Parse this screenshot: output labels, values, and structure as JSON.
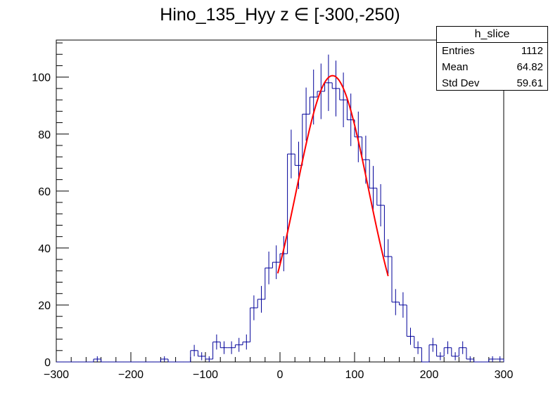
{
  "title": "Hino_135_Hyy z  ∈ [-300,-250)",
  "stats": {
    "name": "h_slice",
    "rows": [
      {
        "label": "Entries",
        "value": "1112"
      },
      {
        "label": "Mean",
        "value": "64.82"
      },
      {
        "label": "Std Dev",
        "value": "59.61"
      }
    ]
  },
  "chart_data": {
    "type": "histogram",
    "xlim": [
      -300,
      300
    ],
    "ylim": [
      0,
      113
    ],
    "xticks": [
      -300,
      -200,
      -100,
      0,
      100,
      200,
      300
    ],
    "yticks": [
      0,
      20,
      40,
      60,
      80,
      100
    ],
    "bin_width": 10,
    "bins": [
      {
        "x": -300,
        "y": 0
      },
      {
        "x": -290,
        "y": 0
      },
      {
        "x": -280,
        "y": 0
      },
      {
        "x": -270,
        "y": 0
      },
      {
        "x": -260,
        "y": 0
      },
      {
        "x": -250,
        "y": 1
      },
      {
        "x": -240,
        "y": 0
      },
      {
        "x": -230,
        "y": 0
      },
      {
        "x": -220,
        "y": 0
      },
      {
        "x": -210,
        "y": 0
      },
      {
        "x": -200,
        "y": 0
      },
      {
        "x": -190,
        "y": 0
      },
      {
        "x": -180,
        "y": 0
      },
      {
        "x": -170,
        "y": 0
      },
      {
        "x": -160,
        "y": 1
      },
      {
        "x": -150,
        "y": 0
      },
      {
        "x": -140,
        "y": 0
      },
      {
        "x": -130,
        "y": 0
      },
      {
        "x": -120,
        "y": 4
      },
      {
        "x": -110,
        "y": 2
      },
      {
        "x": -100,
        "y": 1
      },
      {
        "x": -90,
        "y": 7
      },
      {
        "x": -80,
        "y": 5
      },
      {
        "x": -70,
        "y": 5
      },
      {
        "x": -60,
        "y": 6
      },
      {
        "x": -50,
        "y": 7
      },
      {
        "x": -40,
        "y": 19
      },
      {
        "x": -30,
        "y": 22
      },
      {
        "x": -20,
        "y": 33
      },
      {
        "x": -10,
        "y": 35
      },
      {
        "x": 0,
        "y": 38
      },
      {
        "x": 10,
        "y": 73
      },
      {
        "x": 20,
        "y": 69
      },
      {
        "x": 30,
        "y": 87
      },
      {
        "x": 40,
        "y": 93
      },
      {
        "x": 50,
        "y": 95
      },
      {
        "x": 60,
        "y": 98
      },
      {
        "x": 70,
        "y": 96
      },
      {
        "x": 80,
        "y": 92
      },
      {
        "x": 90,
        "y": 85
      },
      {
        "x": 100,
        "y": 79
      },
      {
        "x": 110,
        "y": 71
      },
      {
        "x": 120,
        "y": 61
      },
      {
        "x": 130,
        "y": 55
      },
      {
        "x": 140,
        "y": 37
      },
      {
        "x": 150,
        "y": 21
      },
      {
        "x": 160,
        "y": 20
      },
      {
        "x": 170,
        "y": 9
      },
      {
        "x": 180,
        "y": 5
      },
      {
        "x": 190,
        "y": 0
      },
      {
        "x": 200,
        "y": 6
      },
      {
        "x": 210,
        "y": 2
      },
      {
        "x": 220,
        "y": 5
      },
      {
        "x": 230,
        "y": 2
      },
      {
        "x": 240,
        "y": 5
      },
      {
        "x": 250,
        "y": 1
      },
      {
        "x": 260,
        "y": 0
      },
      {
        "x": 270,
        "y": 0
      },
      {
        "x": 280,
        "y": 1
      },
      {
        "x": 290,
        "y": 1
      }
    ],
    "fit": {
      "type": "gaussian",
      "color": "#ff0000",
      "amplitude": 100.5,
      "mean": 70.5,
      "sigma": 48,
      "range": [
        -3,
        145
      ]
    },
    "line_color": "#000099",
    "axis_color": "#000000"
  }
}
